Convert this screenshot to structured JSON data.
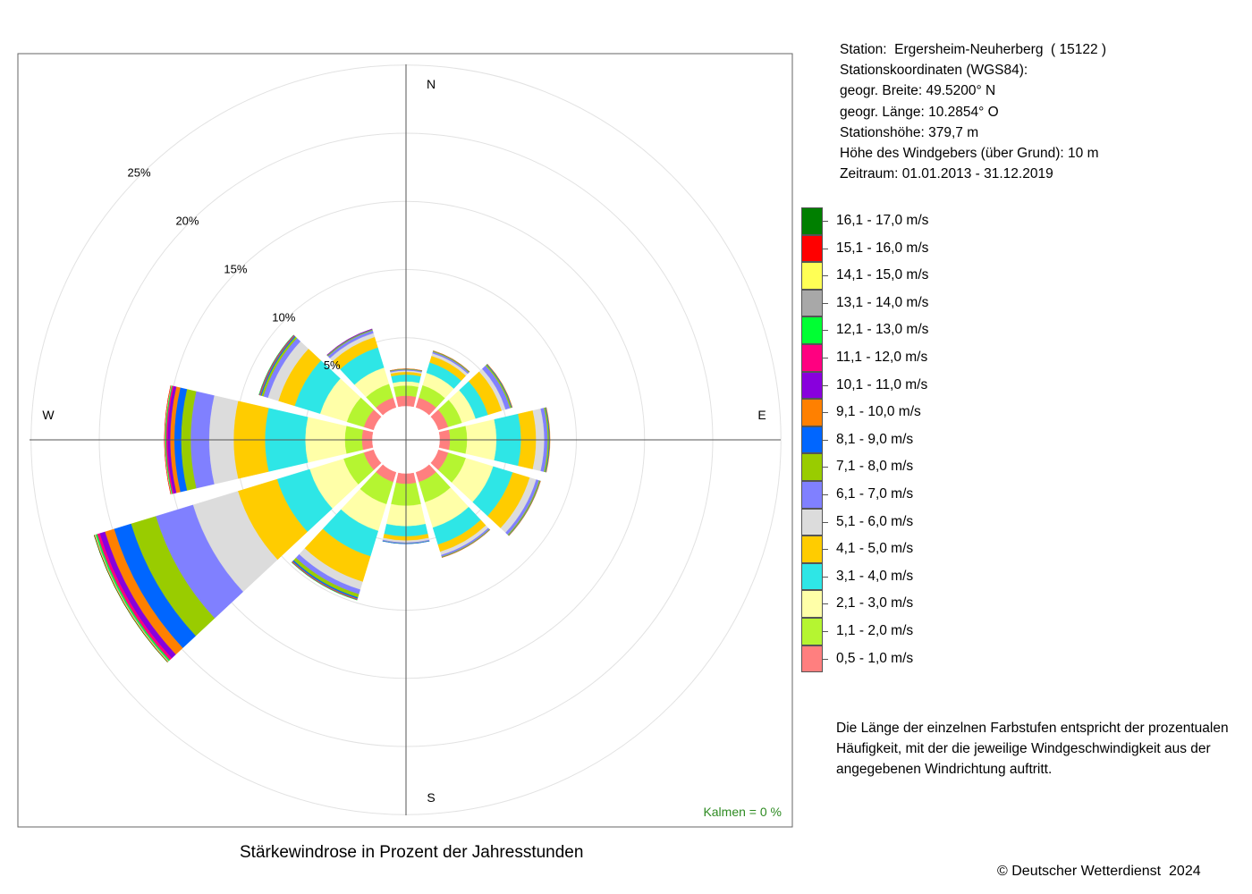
{
  "station": {
    "line1": "Station:  Ergersheim-Neuherberg  ( 15122 )",
    "line2": "Stationskoordinaten (WGS84):",
    "line3": "geogr. Breite: 49.5200° N",
    "line4": "geogr. Länge: 10.2854° O",
    "line5": "Stationshöhe: 379,7 m",
    "line6": "Höhe des Windgebers (über Grund): 10 m",
    "line7": "Zeitraum: 01.01.2013 - 31.12.2019"
  },
  "note": "Die Länge der einzelnen Farbstufen entspricht der prozentualen Häufigkeit, mit der die jeweilige Windgeschwindigkeit aus der angegebenen Windrichtung auftritt.",
  "caption": "Stärkewindrose in Prozent der Jahresstunden",
  "copyright": "© Deutscher Wetterdienst  2024",
  "calm_label": "Kalmen  =  0 %",
  "chart_data": {
    "type": "wind-rose",
    "directions_deg": [
      0,
      30,
      60,
      90,
      120,
      150,
      180,
      210,
      240,
      270,
      300,
      330
    ],
    "compass_labels": {
      "N": "N",
      "E": "E",
      "S": "S",
      "W": "W"
    },
    "radial_ticks": [
      5,
      10,
      15,
      20,
      25
    ],
    "radial_tick_labels": [
      "5%",
      "10%",
      "15%",
      "20%",
      "25%"
    ],
    "radial_max": 25,
    "calm_percent": 0,
    "speed_classes": [
      {
        "label": "0,5 - 1,0 m/s",
        "color": "#FF7F7F"
      },
      {
        "label": "1,1 - 2,0 m/s",
        "color": "#B5F531"
      },
      {
        "label": "2,1 - 3,0 m/s",
        "color": "#FFFFA8"
      },
      {
        "label": "3,1 - 4,0 m/s",
        "color": "#2EE6E6"
      },
      {
        "label": "4,1 - 5,0 m/s",
        "color": "#FFCC00"
      },
      {
        "label": "5,1 - 6,0 m/s",
        "color": "#DCDCDC"
      },
      {
        "label": "6,1 - 7,0 m/s",
        "color": "#8080FF"
      },
      {
        "label": "7,1 - 8,0 m/s",
        "color": "#99CC00"
      },
      {
        "label": "8,1 - 9,0 m/s",
        "color": "#0066FF"
      },
      {
        "label": "9,1 - 10,0 m/s",
        "color": "#FF8000"
      },
      {
        "label": "10,1 - 11,0 m/s",
        "color": "#8800DD"
      },
      {
        "label": "11,1 - 12,0 m/s",
        "color": "#FF0080"
      },
      {
        "label": "12,1 - 13,0 m/s",
        "color": "#00FF33"
      },
      {
        "label": "13,1 - 14,0 m/s",
        "color": "#A8A8A8"
      },
      {
        "label": "14,1 - 15,0 m/s",
        "color": "#FFFF55"
      },
      {
        "label": "15,1 - 16,0 m/s",
        "color": "#FF0000"
      },
      {
        "label": "16,1 - 17,0 m/s",
        "color": "#007F00"
      }
    ],
    "series": [
      {
        "direction": "N",
        "values": [
          0.75,
          0.75,
          0.3,
          0.5,
          0.2,
          0.1,
          0.07,
          0.03,
          0.02,
          0.01,
          0,
          0,
          0,
          0,
          0,
          0,
          0
        ]
      },
      {
        "direction": "30",
        "values": [
          0.75,
          0.95,
          0.95,
          0.8,
          0.5,
          0.2,
          0.12,
          0.05,
          0.02,
          0.01,
          0,
          0,
          0,
          0,
          0,
          0,
          0
        ]
      },
      {
        "direction": "60",
        "values": [
          0.75,
          1.05,
          1.05,
          0.95,
          1.05,
          0.3,
          0.35,
          0.1,
          0.05,
          0.02,
          0,
          0,
          0,
          0,
          0,
          0,
          0
        ]
      },
      {
        "direction": "E",
        "values": [
          0.75,
          1.25,
          2.15,
          1.8,
          1.1,
          0.6,
          0.25,
          0.1,
          0.05,
          0.02,
          0,
          0,
          0,
          0,
          0,
          0,
          0
        ]
      },
      {
        "direction": "120",
        "values": [
          0.75,
          1.35,
          2.1,
          1.5,
          1.3,
          0.5,
          0.22,
          0.07,
          0.03,
          0.01,
          0,
          0,
          0,
          0,
          0,
          0,
          0
        ]
      },
      {
        "direction": "150",
        "values": [
          0.75,
          1.55,
          1.95,
          1.3,
          0.55,
          0.25,
          0.12,
          0.04,
          0.02,
          0.01,
          0,
          0,
          0,
          0,
          0,
          0,
          0
        ]
      },
      {
        "direction": "S",
        "values": [
          0.75,
          1.6,
          1.5,
          0.75,
          0.3,
          0.15,
          0.06,
          0.02,
          0.01,
          0,
          0,
          0,
          0,
          0,
          0,
          0,
          0
        ]
      },
      {
        "direction": "210",
        "values": [
          0.75,
          1.7,
          2.05,
          1.95,
          1.95,
          0.6,
          0.35,
          0.25,
          0.1,
          0.05,
          0.02,
          0.02,
          0.01,
          0,
          0,
          0,
          0
        ]
      },
      {
        "direction": "240",
        "values": [
          0.75,
          1.55,
          2.6,
          2.5,
          3.0,
          3.45,
          2.85,
          1.9,
          1.3,
          0.7,
          0.4,
          0.2,
          0.1,
          0.06,
          0.04,
          0.02,
          0.01
        ]
      },
      {
        "direction": "W",
        "values": [
          0.75,
          1.25,
          2.9,
          2.95,
          2.3,
          1.8,
          1.35,
          0.7,
          0.5,
          0.3,
          0.2,
          0.1,
          0.06,
          0.03,
          0.02,
          0.01,
          0
        ]
      },
      {
        "direction": "300",
        "values": [
          0.75,
          1.3,
          2.05,
          1.95,
          1.25,
          0.8,
          0.35,
          0.15,
          0.08,
          0.05,
          0.03,
          0.02,
          0.01,
          0,
          0,
          0,
          0
        ]
      },
      {
        "direction": "330",
        "values": [
          0.75,
          1.05,
          1.25,
          1.55,
          0.8,
          0.3,
          0.2,
          0.06,
          0.03,
          0.02,
          0.01,
          0,
          0,
          0,
          0,
          0,
          0
        ]
      }
    ]
  }
}
